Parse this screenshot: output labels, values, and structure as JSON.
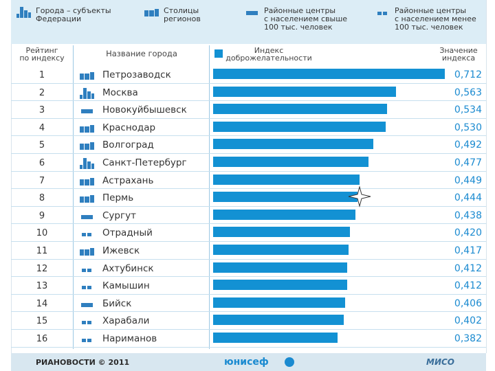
{
  "legend": {
    "items": [
      {
        "icon": "federal-city-icon",
        "label": "Города – субъекты\nФедерации"
      },
      {
        "icon": "regional-capital-icon",
        "label": "Столицы\nрегионов"
      },
      {
        "icon": "large-district-center-icon",
        "label": "Районные центры\nс населением свыше\n100 тыс. человек"
      },
      {
        "icon": "small-district-center-icon",
        "label": "Районные центры\nс населением менее\n100 тыс. человек"
      }
    ]
  },
  "header": {
    "rank": "Рейтинг\nпо индексу",
    "city": "Название города",
    "index": "Индекс\nдоброжелательности",
    "value": "Значение\nиндекса"
  },
  "chart_data": {
    "type": "bar",
    "orientation": "horizontal",
    "title": "Индекс доброжелательности",
    "categories": [
      "Петрозаводск",
      "Москва",
      "Новокуйбышевск",
      "Краснодар",
      "Волгоград",
      "Санкт-Петербург",
      "Астрахань",
      "Пермь",
      "Сургут",
      "Отрадный",
      "Ижевск",
      "Ахтубинск",
      "Камышин",
      "Бийск",
      "Харабали",
      "Нариманов"
    ],
    "ranks": [
      "1",
      "2",
      "3",
      "4",
      "5",
      "6",
      "7",
      "8",
      "9",
      "10",
      "11",
      "12",
      "13",
      "14",
      "15",
      "16"
    ],
    "values": [
      0.712,
      0.563,
      0.534,
      0.53,
      0.492,
      0.477,
      0.449,
      0.444,
      0.438,
      0.42,
      0.417,
      0.412,
      0.412,
      0.406,
      0.402,
      0.382
    ],
    "value_labels": [
      "0,712",
      "0,563",
      "0,534",
      "0,530",
      "0,492",
      "0,477",
      "0,449",
      "0,444",
      "0,438",
      "0,420",
      "0,417",
      "0,412",
      "0,412",
      "0,406",
      "0,402",
      "0,382"
    ],
    "city_types": [
      "regional-capital",
      "federal-city",
      "large-district-center",
      "regional-capital",
      "regional-capital",
      "federal-city",
      "regional-capital",
      "regional-capital",
      "large-district-center",
      "small-district-center",
      "regional-capital",
      "small-district-center",
      "small-district-center",
      "large-district-center",
      "small-district-center",
      "small-district-center"
    ],
    "xlim": [
      0,
      0.712
    ],
    "bar_color": "#1391d3"
  },
  "footer": {
    "left": "РИАНОВОСТИ © 2011",
    "center": "юнисеф",
    "right": "МИСО"
  },
  "colors": {
    "legend_bg": "#dcedf6",
    "accent": "#1391d3",
    "value_text": "#1a8ad0"
  }
}
